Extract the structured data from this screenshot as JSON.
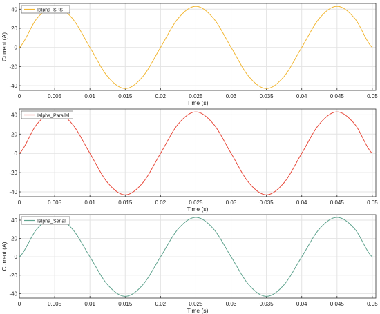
{
  "chart_data": [
    {
      "type": "line",
      "xlabel": "Time (s)",
      "ylabel": "Current (A)",
      "xlim": [
        0,
        0.0505
      ],
      "ylim": [
        -45,
        46
      ],
      "xticks": [
        0,
        0.005,
        0.01,
        0.015,
        0.02,
        0.025,
        0.03,
        0.035,
        0.04,
        0.045,
        0.05
      ],
      "xtick_labels": [
        "0",
        "0.005",
        "0.01",
        "0.015",
        "0.02",
        "0.025",
        "0.03",
        "0.035",
        "0.04",
        "0.045",
        "0.05"
      ],
      "yticks": [
        -40,
        -20,
        0,
        20,
        40
      ],
      "ytick_labels": [
        "-40",
        "-20",
        "0",
        "20",
        "40"
      ],
      "grid": true,
      "legend_position": "top-left",
      "series": [
        {
          "name": "Ialpha_SPS",
          "color": "#f2b733",
          "x": [
            0,
            0.0025,
            0.005,
            0.0075,
            0.01,
            0.0125,
            0.015,
            0.0175,
            0.02,
            0.0225,
            0.025,
            0.0275,
            0.03,
            0.0325,
            0.035,
            0.0375,
            0.04,
            0.0425,
            0.045,
            0.0475,
            0.05
          ],
          "y": [
            0,
            30.4,
            43,
            30.4,
            0,
            -30.4,
            -43,
            -30.4,
            0,
            30.4,
            43,
            30.4,
            0,
            -30.4,
            -43,
            -30.4,
            0,
            30.4,
            43,
            30.4,
            0
          ]
        }
      ]
    },
    {
      "type": "line",
      "xlabel": "Time (s)",
      "ylabel": "",
      "xlim": [
        0,
        0.0505
      ],
      "ylim": [
        -45,
        46
      ],
      "xticks": [
        0,
        0.005,
        0.01,
        0.015,
        0.02,
        0.025,
        0.03,
        0.035,
        0.04,
        0.045,
        0.05
      ],
      "xtick_labels": [
        "0",
        "0.005",
        "0.01",
        "0.015",
        "0.02",
        "0.025",
        "0.03",
        "0.035",
        "0.04",
        "0.045",
        "0.05"
      ],
      "yticks": [
        -40,
        -20,
        0,
        20,
        40
      ],
      "ytick_labels": [
        "-40",
        "-20",
        "0",
        "20",
        "40"
      ],
      "grid": true,
      "legend_position": "top-left",
      "series": [
        {
          "name": "Ialpha_Parallel",
          "color": "#e8493a",
          "x": [
            0,
            0.0025,
            0.005,
            0.0075,
            0.01,
            0.0125,
            0.015,
            0.0175,
            0.02,
            0.0225,
            0.025,
            0.0275,
            0.03,
            0.0325,
            0.035,
            0.0375,
            0.04,
            0.0425,
            0.045,
            0.0475,
            0.05
          ],
          "y": [
            0,
            30.4,
            43,
            30.4,
            0,
            -30.4,
            -43,
            -30.4,
            0,
            30.4,
            43,
            30.4,
            0,
            -30.4,
            -43,
            -30.4,
            0,
            30.4,
            43,
            30.4,
            0
          ]
        }
      ]
    },
    {
      "type": "line",
      "xlabel": "Time (s)",
      "ylabel": "Current (A)",
      "xlim": [
        0,
        0.0505
      ],
      "ylim": [
        -45,
        46
      ],
      "xticks": [
        0,
        0.005,
        0.01,
        0.015,
        0.02,
        0.025,
        0.03,
        0.035,
        0.04,
        0.045,
        0.05
      ],
      "xtick_labels": [
        "0",
        "0.005",
        "0.01",
        "0.015",
        "0.02",
        "0.025",
        "0.03",
        "0.035",
        "0.04",
        "0.045",
        "0.05"
      ],
      "yticks": [
        -40,
        -20,
        0,
        20,
        40
      ],
      "ytick_labels": [
        "-40",
        "-20",
        "0",
        "20",
        "40"
      ],
      "grid": true,
      "legend_position": "top-left",
      "series": [
        {
          "name": "Ialpha_Serial",
          "color": "#5fa38e",
          "x": [
            0,
            0.0025,
            0.005,
            0.0075,
            0.01,
            0.0125,
            0.015,
            0.0175,
            0.02,
            0.0225,
            0.025,
            0.0275,
            0.03,
            0.0325,
            0.035,
            0.0375,
            0.04,
            0.0425,
            0.045,
            0.0475,
            0.05
          ],
          "y": [
            0,
            30.4,
            43,
            30.4,
            0,
            -30.4,
            -43,
            -30.4,
            0,
            30.4,
            43,
            30.4,
            0,
            -30.4,
            -43,
            -30.4,
            0,
            30.4,
            43,
            30.4,
            0
          ]
        }
      ]
    }
  ]
}
